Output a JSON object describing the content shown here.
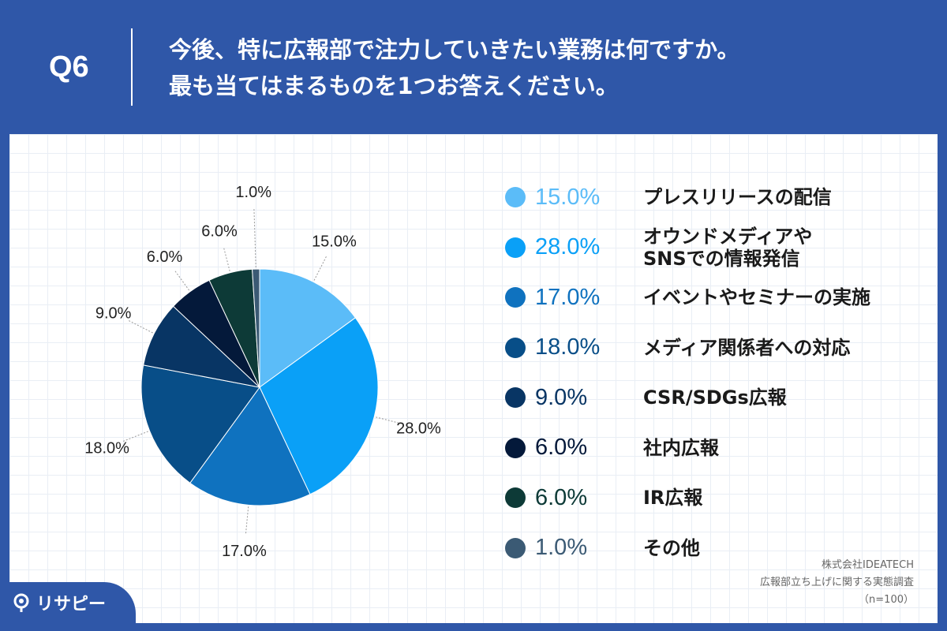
{
  "question": {
    "label": "Q6",
    "line1": "今後、特に広報部で注力していきたい業務は何ですか。",
    "line2": "最も当てはまるものを1つお答えください。"
  },
  "chart_data": {
    "type": "pie",
    "slices": [
      {
        "label": "プレスリリースの配信",
        "value": 15.0,
        "display": "15.0%",
        "color": "#5bbcf8"
      },
      {
        "label": "オウンドメディアや\nSNSでの情報発信",
        "value": 28.0,
        "display": "28.0%",
        "color": "#0aa0f7"
      },
      {
        "label": "イベントやセミナーの実施",
        "value": 17.0,
        "display": "17.0%",
        "color": "#0f72bf"
      },
      {
        "label": "メディア関係者への対応",
        "value": 18.0,
        "display": "18.0%",
        "color": "#084e88"
      },
      {
        "label": "CSR/SDGs広報",
        "value": 9.0,
        "display": "9.0%",
        "color": "#083564"
      },
      {
        "label": "社内広報",
        "value": 6.0,
        "display": "6.0%",
        "color": "#04193a"
      },
      {
        "label": "IR広報",
        "value": 6.0,
        "display": "6.0%",
        "color": "#0d3a37"
      },
      {
        "label": "その他",
        "value": 1.0,
        "display": "1.0%",
        "color": "#3b5a74"
      }
    ],
    "legend_placement": "right"
  },
  "source": {
    "line1": "株式会社IDEATECH",
    "line2": "広報部立ち上げに関する実態調査",
    "line3": "（n=100）"
  },
  "logo": {
    "text": "リサピー"
  }
}
